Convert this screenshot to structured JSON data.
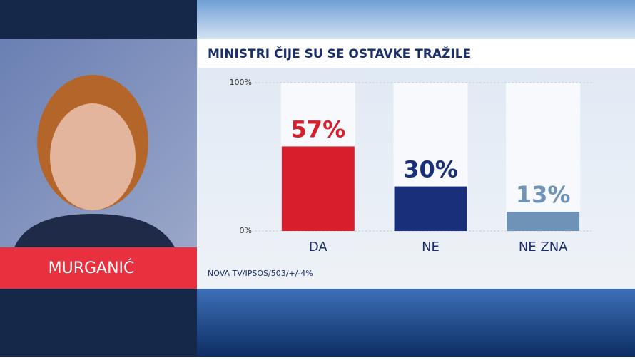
{
  "name": "MURGANIĆ",
  "chart_data": {
    "type": "bar",
    "title": "MINISTRI ČIJE SU SE OSTAVKE TRAŽILE",
    "source": "NOVA TV/IPSOS/503/+/-4%",
    "categories": [
      "DA",
      "NE",
      "NE ZNA"
    ],
    "values": [
      57,
      30,
      13
    ],
    "value_labels": [
      "57%",
      "30%",
      "13%"
    ],
    "colors": [
      "#d81e2c",
      "#1a2f7a",
      "#6e93b6"
    ],
    "ylim": [
      0,
      100
    ],
    "yticks": [
      {
        "value": 0,
        "label": "0%"
      },
      {
        "value": 100,
        "label": "100%"
      }
    ],
    "grid": true
  }
}
